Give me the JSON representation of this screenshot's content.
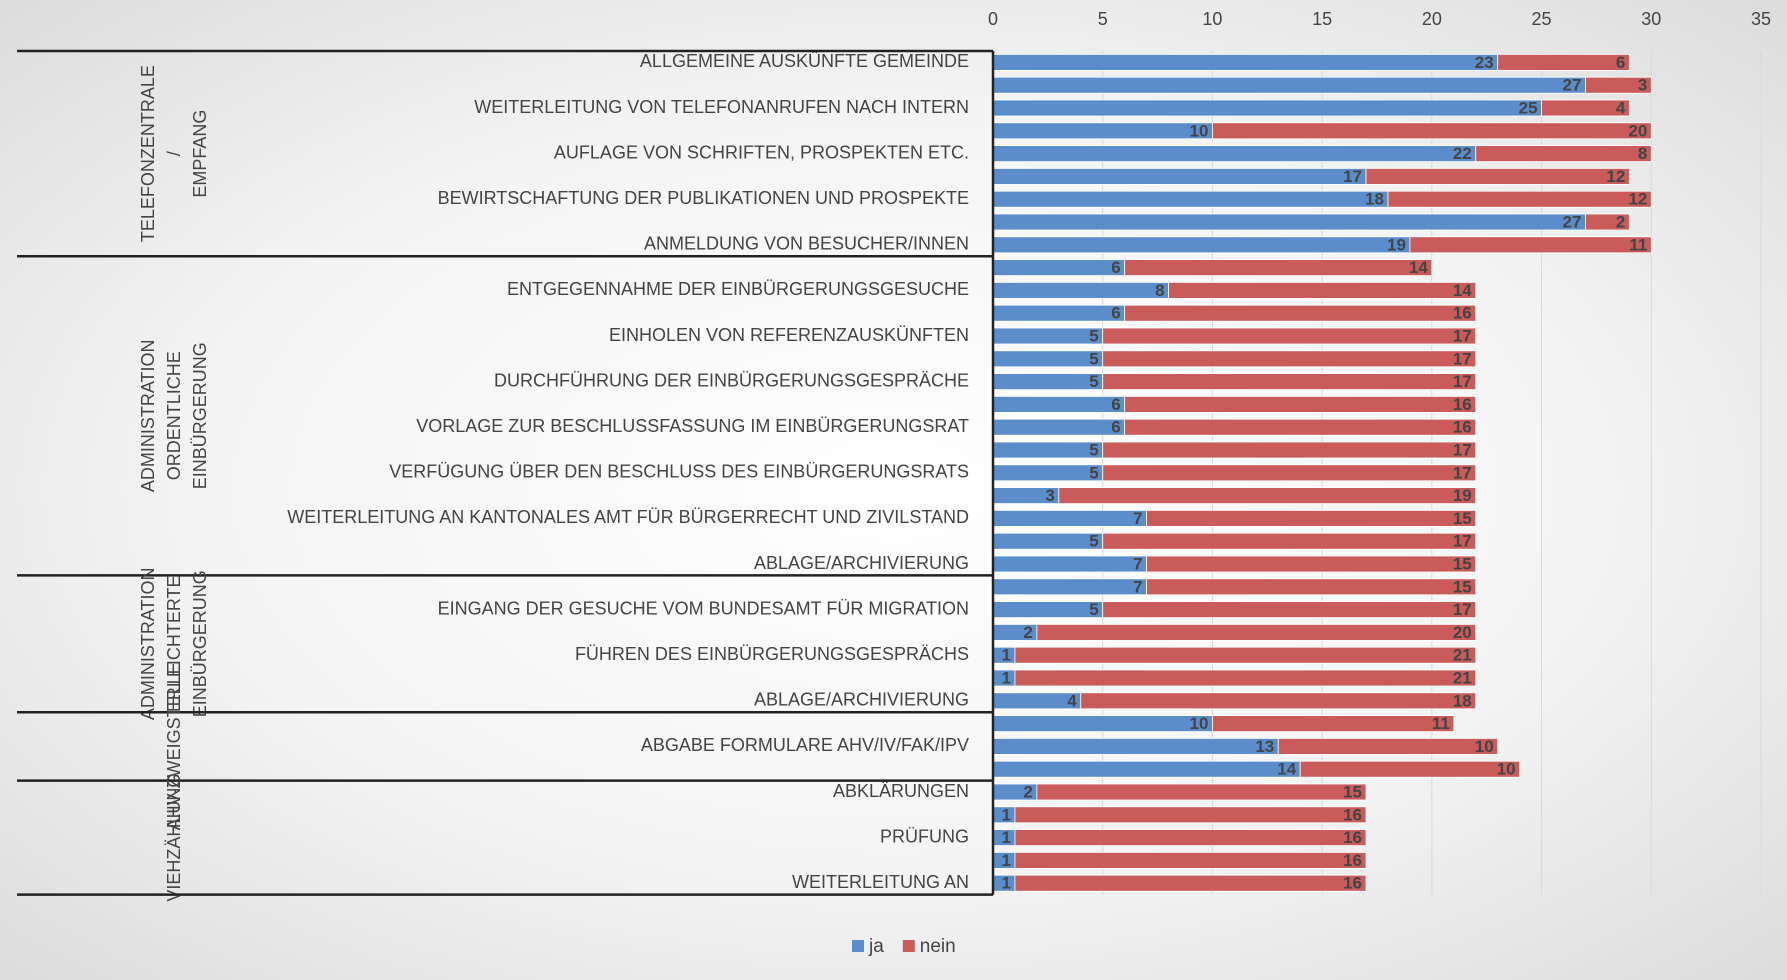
{
  "chart_data": {
    "type": "stacked_barh",
    "categories": [
      "ALLGEMEINE AUSKÜNFTE GEMEINDE",
      null,
      "WEITERLEITUNG VON TELEFONANRUFEN NACH INTERN",
      null,
      "AUFLAGE VON SCHRIFTEN, PROSPEKTEN ETC.",
      null,
      "BEWIRTSCHAFTUNG DER PUBLIKATIONEN UND PROSPEKTE",
      null,
      "ANMELDUNG VON BESUCHER/INNEN",
      null,
      "ENTGEGENNAHME DER EINBÜRGERUNGSGESUCHE",
      null,
      "EINHOLEN VON REFERENZAUSKÜNFTEN",
      null,
      "DURCHFÜHRUNG DER EINBÜRGERUNGSGESPRÄCHE",
      null,
      "VORLAGE ZUR BESCHLUSSFASSUNG IM EINBÜRGERUNGSRAT",
      null,
      "VERFÜGUNG ÜBER DEN BESCHLUSS DES EINBÜRGERUNGSRATS",
      null,
      "WEITERLEITUNG AN KANTONALES AMT FÜR BÜRGERRECHT UND ZIVILSTAND",
      null,
      "ABLAGE/ARCHIVIERUNG",
      null,
      "EINGANG DER GESUCHE VOM BUNDESAMT FÜR MIGRATION",
      null,
      "FÜHREN DES EINBÜRGERUNGSGESPRÄCHS",
      null,
      "ABLAGE/ARCHIVIERUNG",
      null,
      "ABGABE FORMULARE AHV/IV/FAK/IPV",
      null,
      "ABKLÄRUNGEN",
      null,
      "PRÜFUNG",
      null,
      "WEITERLEITUNG AN"
    ],
    "category_groups": [
      {
        "label": "TELEFONZENTRALE / EMPFANG",
        "size": 9
      },
      {
        "label": "ADMINISTRATION ORDENTLICHE EINBÜRGERUNG",
        "size": 14
      },
      {
        "label": "ADMINISTRATION ERLEICHTERTE EINBÜRGERUNG",
        "size": 6
      },
      {
        "label": "AHV-ZWEIGSTELLE",
        "size": 3
      },
      {
        "label": "VIEHZÄHLUNG",
        "size": 5
      }
    ],
    "series": [
      {
        "name": "ja",
        "color": "#5b8dca",
        "values": [
          23,
          27,
          25,
          10,
          22,
          17,
          18,
          27,
          19,
          6,
          8,
          6,
          5,
          5,
          5,
          6,
          6,
          5,
          5,
          3,
          7,
          5,
          7,
          7,
          5,
          2,
          1,
          1,
          4,
          10,
          13,
          14,
          2,
          1,
          1,
          1,
          1
        ]
      },
      {
        "name": "nein",
        "color": "#c95b5b",
        "values": [
          6,
          3,
          4,
          20,
          8,
          12,
          12,
          2,
          11,
          14,
          14,
          16,
          17,
          17,
          17,
          16,
          16,
          17,
          17,
          19,
          15,
          17,
          15,
          15,
          17,
          20,
          21,
          21,
          18,
          11,
          10,
          10,
          15,
          16,
          16,
          16,
          16
        ]
      }
    ],
    "xlim": [
      0,
      35
    ],
    "xticks": [
      0,
      5,
      10,
      15,
      20,
      25,
      30,
      35
    ],
    "grid": true,
    "legend": "bottom"
  }
}
